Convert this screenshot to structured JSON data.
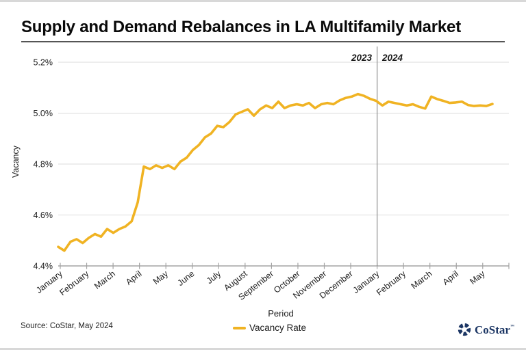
{
  "header": {
    "title": "Supply and Demand Rebalances in LA Multifamily Market"
  },
  "legend": {
    "items": [
      {
        "label": "Vacancy Rate",
        "color": "#F0B323"
      }
    ]
  },
  "footer": {
    "source": "Source: CoStar, May 2024",
    "brand": {
      "name": "CoStar",
      "trademark": "™",
      "color": "#1C3664"
    }
  },
  "chart_data": {
    "type": "line",
    "title": "Supply and Demand Rebalances in LA Multifamily Market",
    "xlabel": "Period",
    "ylabel": "Vacancy",
    "ylim": [
      4.4,
      5.2
    ],
    "y_ticks": [
      5.2,
      5.0,
      4.8,
      4.6,
      4.4
    ],
    "y_tick_labels": [
      "5.2%",
      "5.0%",
      "4.8%",
      "4.6%",
      "4.4%"
    ],
    "x_tick_labels": [
      "January",
      "February",
      "March",
      "April",
      "May",
      "June",
      "July",
      "August",
      "September",
      "October",
      "November",
      "December",
      "January",
      "February",
      "March",
      "April",
      "May"
    ],
    "year_divider": {
      "left_label": "2023",
      "right_label": "2024",
      "at_tick_index": 12
    },
    "grid": "horizontal",
    "legend_position": "bottom",
    "series": [
      {
        "name": "Vacancy Rate",
        "color": "#F0B323",
        "sampling": "weekly",
        "start": "January 2023",
        "end": "mid-May 2024",
        "values": [
          4.475,
          4.46,
          4.495,
          4.505,
          4.49,
          4.51,
          4.525,
          4.515,
          4.545,
          4.53,
          4.545,
          4.555,
          4.575,
          4.65,
          4.79,
          4.78,
          4.795,
          4.785,
          4.795,
          4.78,
          4.81,
          4.825,
          4.855,
          4.875,
          4.905,
          4.92,
          4.95,
          4.945,
          4.965,
          4.995,
          5.005,
          5.015,
          4.99,
          5.015,
          5.03,
          5.02,
          5.045,
          5.02,
          5.03,
          5.035,
          5.03,
          5.04,
          5.02,
          5.035,
          5.04,
          5.035,
          5.05,
          5.06,
          5.065,
          5.075,
          5.068,
          5.056,
          5.048,
          5.03,
          5.045,
          5.04,
          5.035,
          5.03,
          5.035,
          5.025,
          5.018,
          5.065,
          5.055,
          5.048,
          5.04,
          5.042,
          5.045,
          5.032,
          5.028,
          5.03,
          5.028,
          5.036
        ]
      }
    ]
  }
}
